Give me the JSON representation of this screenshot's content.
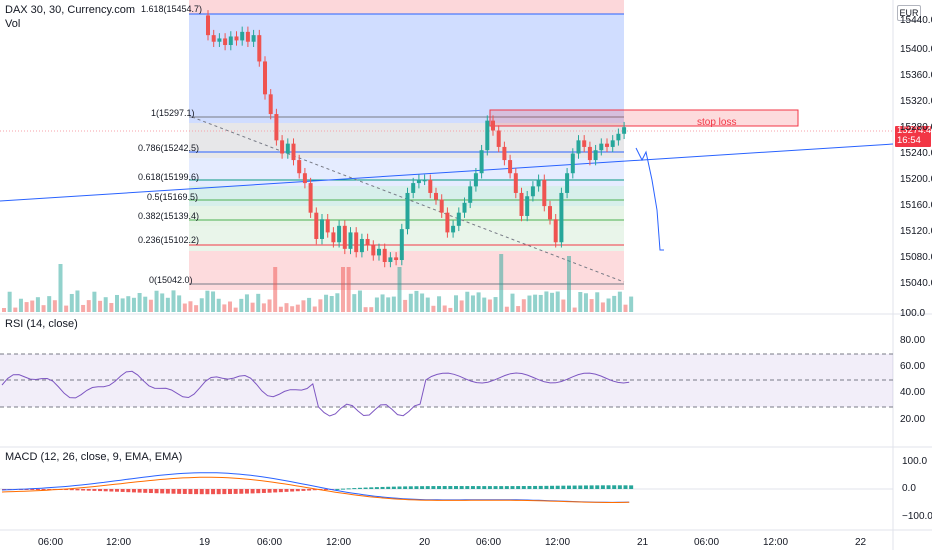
{
  "symbol_title": "DAX 30, 30, Currency.com",
  "volume_label": "Vol",
  "currency": "EUR",
  "last_price": {
    "value": "15274.4",
    "countdown": "16:54"
  },
  "price_axis": {
    "ticks": [
      "15440.0",
      "15400.0",
      "15360.0",
      "15320.0",
      "15280.0",
      "15240.0",
      "15200.0",
      "15160.0",
      "15120.0",
      "15080.0",
      "15040.0"
    ],
    "vol_top": "100.0"
  },
  "rsi": {
    "title": "RSI (14, close)",
    "ticks": [
      "80.00",
      "60.00",
      "40.00",
      "20.00"
    ]
  },
  "macd": {
    "title": "MACD (12, 26, close, 9, EMA, EMA)",
    "ticks": [
      "100.0",
      "0.0",
      "−100.0"
    ]
  },
  "time_axis": [
    "06:00",
    "12:00",
    "19",
    "06:00",
    "12:00",
    "20",
    "06:00",
    "12:00",
    "21",
    "06:00",
    "12:00",
    "22"
  ],
  "fib_levels": [
    {
      "label": "1.618(15454.7)",
      "color": "#2962ff"
    },
    {
      "label": "1(15297.1)",
      "color": "#787b86"
    },
    {
      "label": "0.786(15242.5)",
      "color": "#2962ff"
    },
    {
      "label": "0.618(15199.6)",
      "color": "#089981"
    },
    {
      "label": "0.5(15169.5)",
      "color": "#4caf50"
    },
    {
      "label": "0.382(15139.4)",
      "color": "#4caf50"
    },
    {
      "label": "0.236(15102.2)",
      "color": "#f23645"
    },
    {
      "label": "0(15042.0)",
      "color": "#787b86"
    }
  ],
  "annotation": {
    "stop_loss": "stop loss"
  },
  "colors": {
    "up": "#26a69a",
    "down": "#ef5350",
    "rsi_line": "#7e57c2",
    "macd_line": "#2962ff",
    "signal_line": "#ff6d00"
  }
}
